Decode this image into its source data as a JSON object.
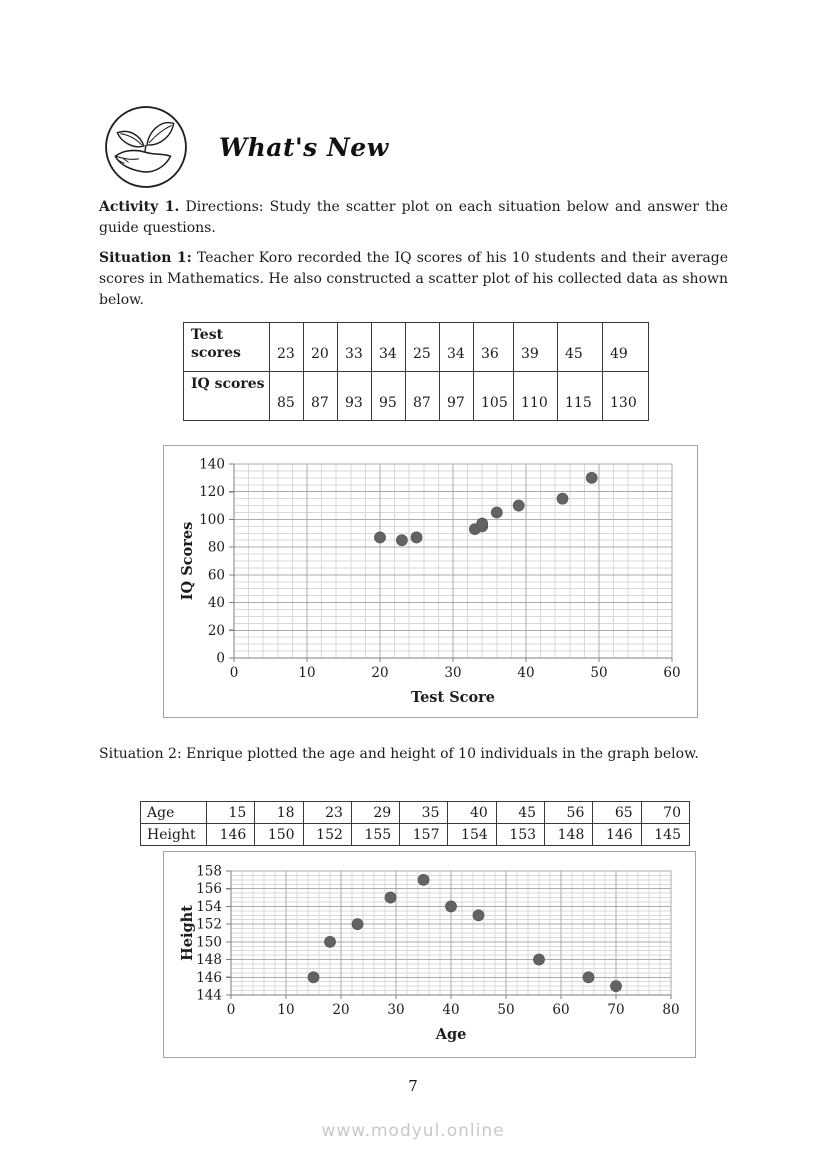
{
  "header": {
    "title": "What's New"
  },
  "content": {
    "activity": {
      "label": "Activity 1.",
      "text": "Directions: Study the scatter plot on each situation below and answer the guide questions."
    },
    "situation1": {
      "label": "Situation 1:",
      "text": "Teacher Koro recorded the IQ scores of his 10 students and their average scores in Mathematics. He also constructed a scatter plot of his collected data as shown below."
    },
    "situation2": {
      "text": "Situation 2: Enrique plotted the age and height of 10 individuals in the graph below."
    }
  },
  "tables": {
    "scores": {
      "rows": [
        {
          "label": "Test scores",
          "values": [
            "23",
            "20",
            "33",
            "34",
            "25",
            "34",
            "36",
            "39",
            "45",
            "49"
          ]
        },
        {
          "label": "IQ scores",
          "values": [
            "85",
            "87",
            "93",
            "95",
            "87",
            "97",
            "105",
            "110",
            "115",
            "130"
          ]
        }
      ]
    },
    "age_height": {
      "rows": [
        {
          "label": "Age",
          "values": [
            "15",
            "18",
            "23",
            "29",
            "35",
            "40",
            "45",
            "56",
            "65",
            "70"
          ]
        },
        {
          "label": "Height",
          "values": [
            "146",
            "150",
            "152",
            "155",
            "157",
            "154",
            "153",
            "148",
            "146",
            "145"
          ]
        }
      ]
    }
  },
  "chart_data": [
    {
      "type": "scatter",
      "title": "",
      "xlabel": "Test Score",
      "ylabel": "IQ Scores",
      "x": [
        23,
        20,
        33,
        34,
        25,
        34,
        36,
        39,
        45,
        49
      ],
      "y": [
        85,
        87,
        93,
        95,
        87,
        97,
        105,
        110,
        115,
        130
      ],
      "xlim": [
        0,
        60
      ],
      "ylim": [
        0,
        140
      ],
      "x_tick_step": 10,
      "y_tick_step": 20,
      "x_minor_step": 2,
      "y_minor_step": 5,
      "grid": true,
      "legend": false,
      "point_color": "#636363"
    },
    {
      "type": "scatter",
      "title": "",
      "xlabel": "Age",
      "ylabel": "Height",
      "x": [
        15,
        18,
        23,
        29,
        35,
        40,
        45,
        56,
        65,
        70
      ],
      "y": [
        146,
        150,
        152,
        155,
        157,
        154,
        153,
        148,
        146,
        145
      ],
      "xlim": [
        0,
        80
      ],
      "ylim": [
        144,
        158
      ],
      "x_tick_step": 10,
      "y_tick_step": 2,
      "x_minor_step": 2,
      "y_minor_step": 0.5,
      "grid": true,
      "legend": false,
      "point_color": "#636363"
    }
  ],
  "footer": {
    "page_number": "7",
    "watermark": "www.modyul.online"
  },
  "colors": {
    "grid_minor": "#d9d9d9",
    "grid_major": "#ababab",
    "axis": "#7f7f7f",
    "tick_text": "#1c1c1c",
    "point": "#636363"
  }
}
